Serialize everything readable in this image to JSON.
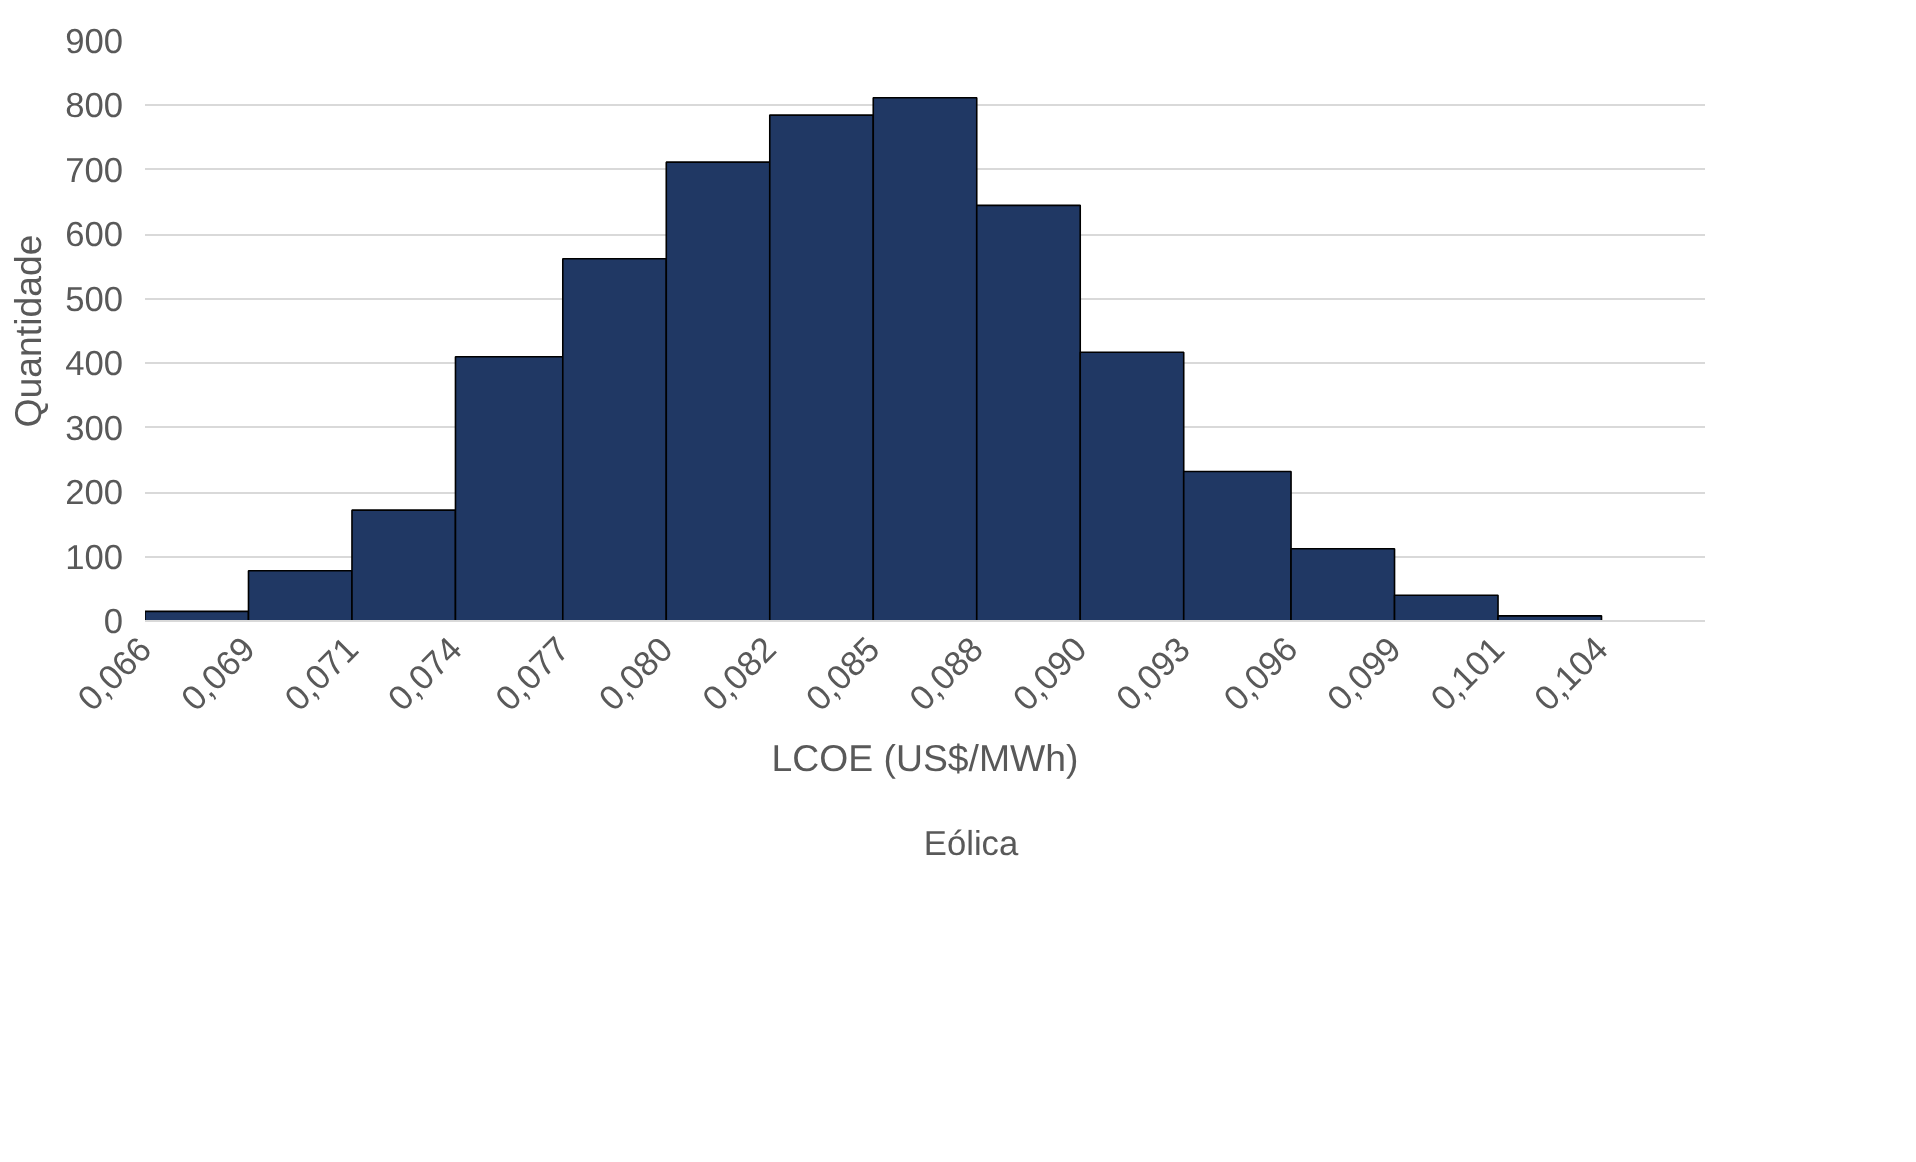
{
  "chart_data": {
    "type": "histogram",
    "xlabel": "LCOE (US$/MWh)",
    "ylabel": "Quantidade",
    "bins": [
      0.066,
      0.0687,
      0.0714,
      0.0741,
      0.0769,
      0.0796,
      0.0823,
      0.085,
      0.0877,
      0.0904,
      0.0931,
      0.0959,
      0.0986,
      0.1013,
      0.104
    ],
    "series": [
      {
        "name": "Eólica",
        "color": "#203864",
        "values": [
          15,
          78,
          172,
          410,
          562,
          712,
          785,
          812,
          645,
          417,
          232,
          112,
          40,
          8
        ]
      }
    ],
    "xlim": [
      0.066,
      0.1067
    ],
    "xticks": [
      {
        "value": 0.066,
        "label": "0,066"
      },
      {
        "value": 0.0687,
        "label": "0,069"
      },
      {
        "value": 0.0714,
        "label": "0,071"
      },
      {
        "value": 0.0741,
        "label": "0,074"
      },
      {
        "value": 0.0769,
        "label": "0,077"
      },
      {
        "value": 0.0796,
        "label": "0,080"
      },
      {
        "value": 0.0823,
        "label": "0,082"
      },
      {
        "value": 0.085,
        "label": "0,085"
      },
      {
        "value": 0.0877,
        "label": "0,088"
      },
      {
        "value": 0.0904,
        "label": "0,090"
      },
      {
        "value": 0.0931,
        "label": "0,093"
      },
      {
        "value": 0.0959,
        "label": "0,096"
      },
      {
        "value": 0.0986,
        "label": "0,099"
      },
      {
        "value": 0.1013,
        "label": "0,101"
      },
      {
        "value": 0.104,
        "label": "0,104"
      }
    ],
    "ylim": [
      0,
      900
    ],
    "yticks": [
      0,
      100,
      200,
      300,
      400,
      500,
      600,
      700,
      800,
      900
    ],
    "grid": "y",
    "legend": "bottom"
  }
}
